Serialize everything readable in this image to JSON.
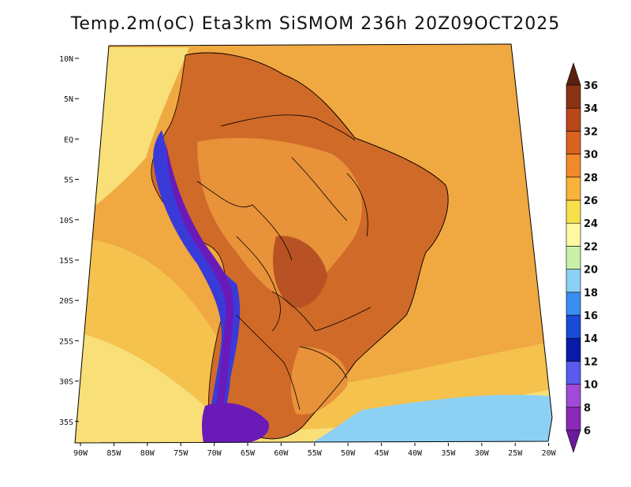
{
  "title": "Temp.2m(oC) Eta3km SiSMOM 236h 20Z09OCT2025",
  "lat_labels": [
    "10N",
    "5N",
    "EQ",
    "5S",
    "10S",
    "15S",
    "20S",
    "25S",
    "30S",
    "35S"
  ],
  "lon_labels": [
    "90W",
    "85W",
    "80W",
    "75W",
    "70W",
    "65W",
    "60W",
    "55W",
    "50W",
    "45W",
    "40W",
    "35W",
    "30W",
    "25W",
    "20W"
  ],
  "colorbar": {
    "labels": [
      "6",
      "8",
      "10",
      "12",
      "14",
      "16",
      "18",
      "20",
      "22",
      "24",
      "26",
      "28",
      "30",
      "32",
      "34",
      "36"
    ],
    "colors": [
      "#6a1a9a",
      "#8a2ab8",
      "#a14ad8",
      "#5a5aee",
      "#0a1aa8",
      "#1a4ad8",
      "#3b8ef0",
      "#8cd0f4",
      "#c8f0a8",
      "#fff8a0",
      "#f8e04a",
      "#f8b43a",
      "#f08a2a",
      "#d8621e",
      "#b8481a",
      "#8a3414",
      "#5c2010"
    ]
  },
  "palette": {
    "ocean_warm": "#f0a840",
    "ocean_mid": "#f5c24e",
    "ocean_cool": "#f8df78",
    "land_hot": "#d06a28",
    "land_hotter": "#b85224",
    "land_coolish": "#e8923a",
    "andes_cold": "#3a3ad8",
    "andes_colder": "#6a1ab8",
    "cold_south": "#8cd0f4",
    "border": "#000000"
  }
}
